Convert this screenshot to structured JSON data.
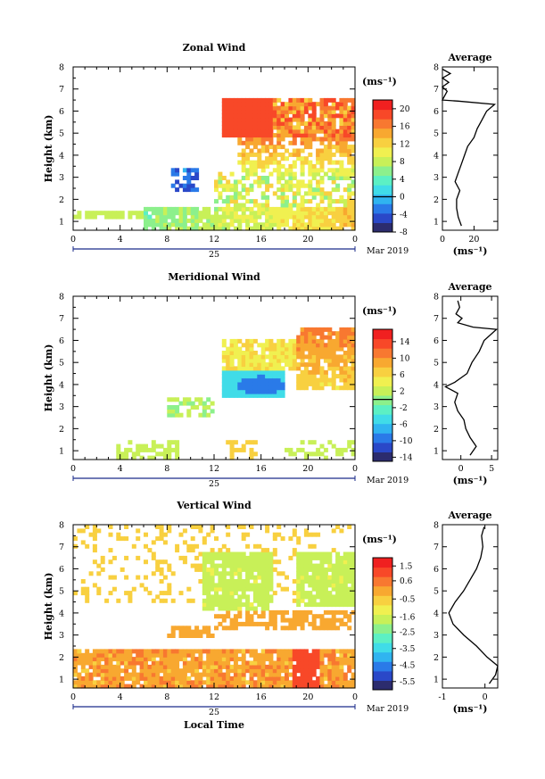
{
  "x_axis": {
    "ticks": [
      "0",
      "4",
      "8",
      "12",
      "16",
      "20",
      "0"
    ],
    "date_day": "25",
    "month_year": "Mar 2019",
    "xlabel": "Local Time"
  },
  "y_axis": {
    "label": "Height (km)",
    "ticks": [
      "1",
      "2",
      "3",
      "4",
      "5",
      "6",
      "7",
      "8"
    ]
  },
  "unit_label": "(ms⁻¹)",
  "average_title": "Average",
  "average_xlabel": "(ms⁻¹)",
  "colors": {
    "colormap": [
      "#2c2c6e",
      "#2a48c8",
      "#2a7ae8",
      "#30b4f0",
      "#40dce8",
      "#5cf0c4",
      "#8cf08c",
      "#c8f058",
      "#f0f050",
      "#f8d040",
      "#f8a830",
      "#f87830",
      "#f84828",
      "#f02020"
    ]
  },
  "chart_data": [
    {
      "type": "heatmap",
      "title": "Zonal Wind",
      "time_range_hours": [
        0,
        24
      ],
      "height_range_km": [
        0.6,
        8.0
      ],
      "colorbar": {
        "range": [
          -8,
          22
        ],
        "ticks": [
          "20",
          "16",
          "12",
          "8",
          "4",
          "0",
          "-4",
          "-8"
        ],
        "zero_line": 0
      },
      "average_profile": {
        "xlim": [
          0,
          35
        ],
        "xticks": [
          "0",
          "20"
        ],
        "points": [
          [
            12,
            0.8
          ],
          [
            10,
            1.2
          ],
          [
            9,
            1.6
          ],
          [
            9,
            2.0
          ],
          [
            11,
            2.4
          ],
          [
            8,
            2.8
          ],
          [
            10,
            3.2
          ],
          [
            12,
            3.6
          ],
          [
            14,
            4.0
          ],
          [
            16,
            4.4
          ],
          [
            20,
            4.8
          ],
          [
            22,
            5.2
          ],
          [
            25,
            5.6
          ],
          [
            28,
            6.0
          ],
          [
            33,
            6.3
          ],
          [
            10,
            6.45
          ],
          [
            0,
            6.5
          ],
          [
            3,
            6.9
          ],
          [
            0,
            7.1
          ],
          [
            4,
            7.3
          ],
          [
            0,
            7.5
          ],
          [
            5,
            7.7
          ],
          [
            0,
            7.9
          ]
        ]
      }
    },
    {
      "type": "heatmap",
      "title": "Meridional Wind",
      "time_range_hours": [
        0,
        24
      ],
      "height_range_km": [
        0.6,
        8.0
      ],
      "colorbar": {
        "range": [
          -15,
          17
        ],
        "ticks": [
          "14",
          "10",
          "6",
          "2",
          "-2",
          "-6",
          "-10",
          "-14"
        ],
        "zero_line": 0
      },
      "average_profile": {
        "xlim": [
          -3,
          6
        ],
        "xticks": [
          "0",
          "5"
        ],
        "points": [
          [
            1.5,
            0.8
          ],
          [
            2.5,
            1.2
          ],
          [
            1.5,
            1.6
          ],
          [
            0.8,
            2.0
          ],
          [
            0.5,
            2.4
          ],
          [
            -0.5,
            2.8
          ],
          [
            -1.0,
            3.2
          ],
          [
            -0.5,
            3.6
          ],
          [
            -2.5,
            3.9
          ],
          [
            -1.0,
            4.1
          ],
          [
            1.0,
            4.5
          ],
          [
            1.8,
            5.0
          ],
          [
            3.0,
            5.5
          ],
          [
            3.8,
            6.0
          ],
          [
            5.8,
            6.5
          ],
          [
            2.0,
            6.6
          ],
          [
            -0.5,
            6.8
          ],
          [
            0.2,
            7.0
          ],
          [
            -0.8,
            7.2
          ],
          [
            -0.2,
            7.5
          ],
          [
            -0.5,
            7.8
          ]
        ]
      }
    },
    {
      "type": "heatmap",
      "title": "Vertical Wind",
      "time_range_hours": [
        0,
        24
      ],
      "height_range_km": [
        0.6,
        8.0
      ],
      "colorbar": {
        "range": [
          -6.0,
          2.0
        ],
        "ticks": [
          "1.5",
          "0.6",
          "-0.5",
          "-1.6",
          "-2.5",
          "-3.5",
          "-4.5",
          "-5.5"
        ]
      },
      "average_profile": {
        "xlim": [
          -1.0,
          0.3
        ],
        "xticks": [
          "-1",
          "0"
        ],
        "points": [
          [
            0.1,
            0.8
          ],
          [
            0.25,
            1.2
          ],
          [
            0.3,
            1.6
          ],
          [
            0.05,
            2.0
          ],
          [
            -0.2,
            2.5
          ],
          [
            -0.5,
            3.0
          ],
          [
            -0.75,
            3.5
          ],
          [
            -0.85,
            4.0
          ],
          [
            -0.7,
            4.5
          ],
          [
            -0.5,
            5.0
          ],
          [
            -0.35,
            5.5
          ],
          [
            -0.2,
            6.0
          ],
          [
            -0.1,
            6.5
          ],
          [
            -0.05,
            7.0
          ],
          [
            -0.08,
            7.5
          ],
          [
            -0.02,
            7.9
          ]
        ]
      }
    }
  ]
}
